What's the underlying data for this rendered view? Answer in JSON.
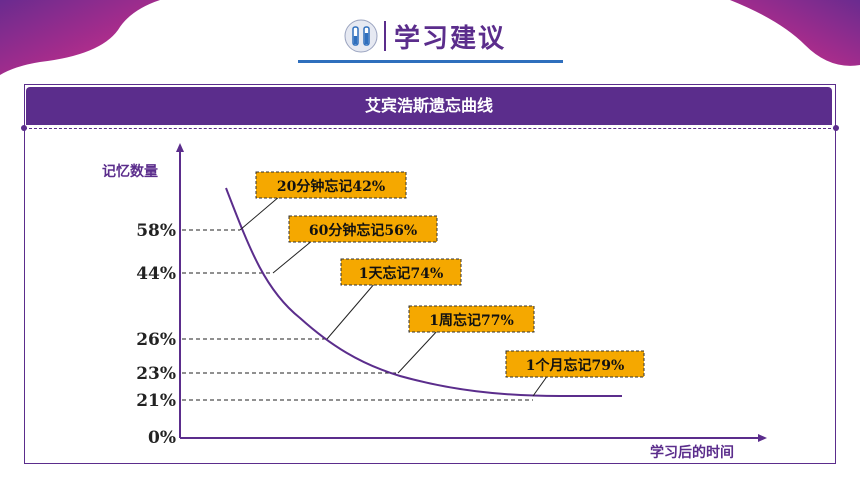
{
  "header": {
    "title": "学习建议",
    "icon": "test-tube-icon"
  },
  "panel": {
    "title": "艾宾浩斯遗忘曲线"
  },
  "colors": {
    "accent": "#5b2d8c",
    "note_fill": "#f5a800",
    "rule": "#2f6fbd"
  },
  "chart_data": {
    "type": "line",
    "title": "艾宾浩斯遗忘曲线",
    "ylabel": "记忆数量",
    "xlabel": "学习后的时间",
    "y_ticks": [
      "58%",
      "44%",
      "26%",
      "23%",
      "21%",
      "0%"
    ],
    "ylim": [
      0,
      100
    ],
    "series": [
      {
        "values": [
          58,
          44,
          26,
          23,
          21
        ]
      }
    ],
    "annotations": [
      {
        "label": "20分钟忘记42%",
        "y": 58
      },
      {
        "label": "60分钟忘记56%",
        "y": 44
      },
      {
        "label": "1天忘记74%",
        "y": 26
      },
      {
        "label": "1周忘记77%",
        "y": 23
      },
      {
        "label": "1个月忘记79%",
        "y": 21
      }
    ]
  }
}
